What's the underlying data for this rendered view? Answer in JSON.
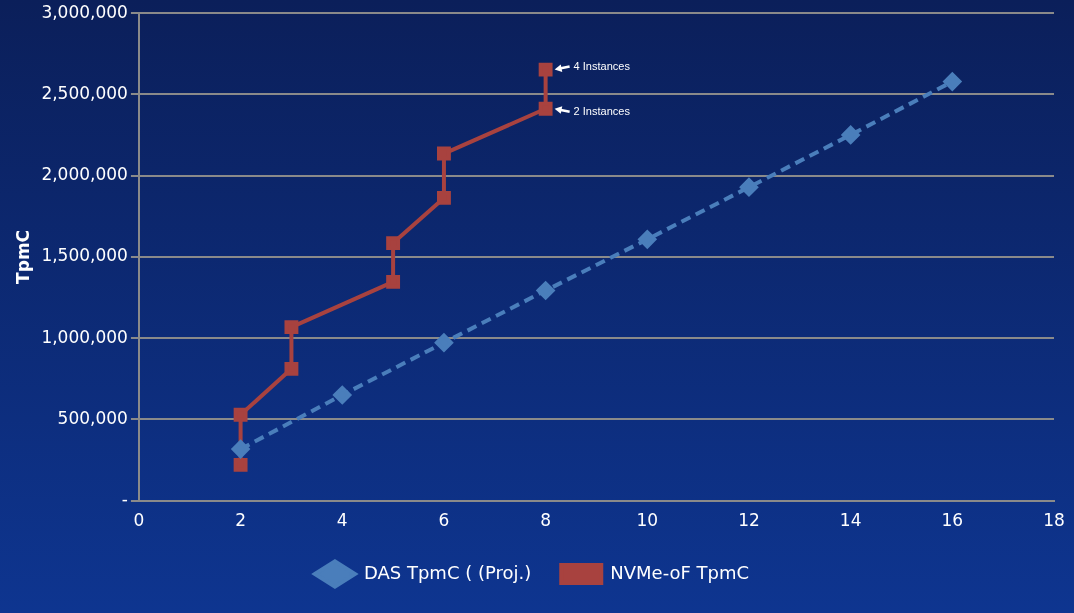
{
  "chart_data": {
    "type": "line",
    "ylabel": "TpmC",
    "xlim": [
      0,
      18
    ],
    "xticks": [
      0,
      2,
      4,
      6,
      8,
      10,
      12,
      14,
      16,
      18
    ],
    "ylim": [
      0,
      3000000
    ],
    "yticks": [
      {
        "value": 0,
        "label": "-"
      },
      {
        "value": 500000,
        "label": "500,000"
      },
      {
        "value": 1000000,
        "label": "1,000,000"
      },
      {
        "value": 1500000,
        "label": "1,500,000"
      },
      {
        "value": 2000000,
        "label": "2,000,000"
      },
      {
        "value": 2500000,
        "label": "2,500,000"
      },
      {
        "value": 3000000,
        "label": "3,000,000"
      }
    ],
    "grid": "y",
    "legend": "bottom",
    "series": [
      {
        "name": "DAS TpmC ( (Proj.)",
        "color": "#4a7ebb",
        "marker": "diamond",
        "line_style": "dashed",
        "x": [
          2,
          4,
          6,
          8,
          10,
          12,
          14,
          16
        ],
        "values": [
          317000,
          650000,
          972000,
          1293000,
          1608000,
          1929000,
          2251000,
          2579000
        ]
      },
      {
        "name": "NVMe-oF TpmC",
        "color": "#a8423f",
        "marker": "square",
        "line_style": "solid",
        "x": [
          2,
          2,
          3,
          3,
          5,
          5,
          6,
          6,
          8,
          8
        ],
        "values": [
          220000,
          528000,
          811000,
          1068000,
          1346000,
          1585000,
          1863000,
          2136000,
          2412000,
          2653000
        ]
      }
    ],
    "annotations": [
      {
        "text": "4 Instances",
        "x": 8,
        "y": 2653000
      },
      {
        "text": "2 Instances",
        "x": 8,
        "y": 2412000
      }
    ]
  }
}
